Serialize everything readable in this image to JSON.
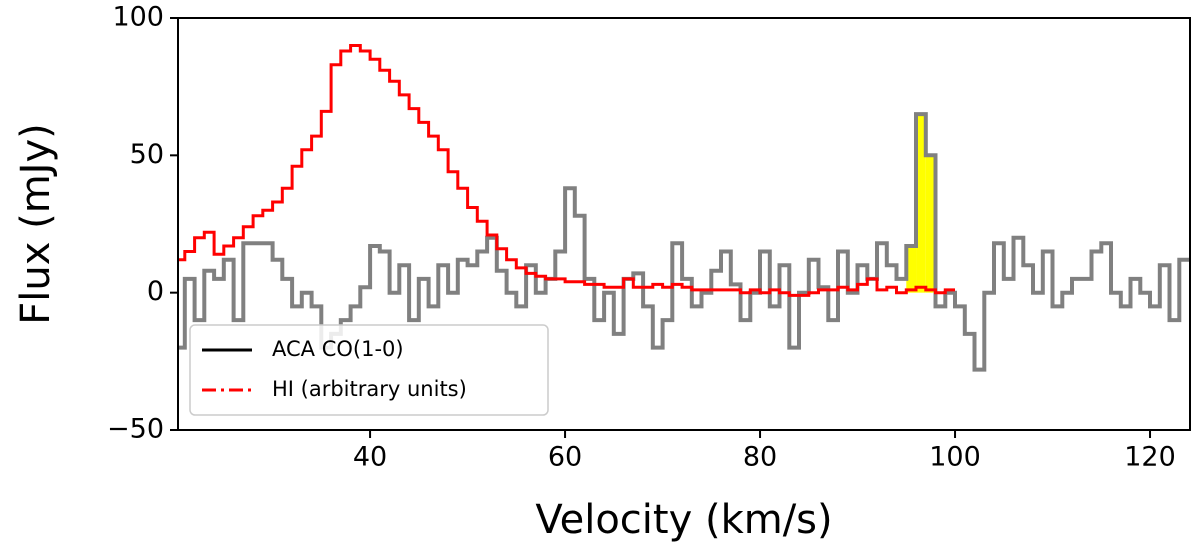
{
  "chart_data": {
    "type": "step",
    "xlabel": "Velocity (km/s)",
    "ylabel": "Flux (mJy)",
    "xlim": [
      20.3,
      124.1
    ],
    "ylim": [
      -50,
      100
    ],
    "xticks": [
      40,
      60,
      80,
      100,
      120
    ],
    "yticks": [
      {
        "value": -50,
        "label": "−50"
      },
      0,
      50,
      100
    ],
    "legend": "lower left",
    "highlight": {
      "xlim": [
        95,
        98
      ],
      "color": "#ffff00"
    },
    "series": [
      {
        "name": "ACA CO(1-0)",
        "color": "#808080",
        "legend_color": "#000000",
        "dash": "solid",
        "x": [
          20.5,
          21.5,
          22.5,
          23.5,
          24.5,
          25.5,
          26.5,
          27.5,
          28.5,
          29.5,
          30.5,
          31.5,
          32.5,
          33.5,
          34.5,
          35.5,
          36.5,
          37.5,
          38.5,
          39.5,
          40.5,
          41.5,
          42.5,
          43.5,
          44.5,
          45.5,
          46.5,
          47.5,
          48.5,
          49.5,
          50.5,
          51.5,
          52.5,
          53.5,
          54.5,
          55.5,
          56.5,
          57.5,
          58.5,
          59.5,
          60.5,
          61.5,
          62.5,
          63.5,
          64.5,
          65.5,
          66.5,
          67.5,
          68.5,
          69.5,
          70.5,
          71.5,
          72.5,
          73.5,
          74.5,
          75.5,
          76.5,
          77.5,
          78.5,
          79.5,
          80.5,
          81.5,
          82.5,
          83.5,
          84.5,
          85.5,
          86.5,
          87.5,
          88.5,
          89.5,
          90.5,
          91.5,
          92.5,
          93.5,
          94.5,
          95.5,
          96.5,
          97.5,
          98.5,
          99.5,
          100.5,
          101.5,
          102.5,
          103.5,
          104.5,
          105.5,
          106.5,
          107.5,
          108.5,
          109.5,
          110.5,
          111.5,
          112.5,
          113.5,
          114.5,
          115.5,
          116.5,
          117.5,
          118.5,
          119.5,
          120.5,
          121.5,
          122.5,
          123.5
        ],
        "values": [
          -20,
          5,
          -10,
          8,
          5,
          12,
          -10,
          18,
          18,
          18,
          12,
          5,
          -5,
          0,
          -5,
          -20,
          -15,
          -10,
          -5,
          2,
          17,
          15,
          0,
          10,
          -10,
          5,
          -5,
          10,
          0,
          12,
          10,
          15,
          20,
          8,
          0,
          -5,
          10,
          0,
          5,
          15,
          38,
          28,
          5,
          -10,
          0,
          -15,
          5,
          7,
          -5,
          -20,
          -10,
          18,
          5,
          -5,
          0,
          8,
          15,
          3,
          -10,
          0,
          15,
          -5,
          10,
          -20,
          0,
          12,
          2,
          -10,
          15,
          0,
          10,
          5,
          18,
          10,
          5,
          17,
          65,
          50,
          -5,
          0,
          -5,
          -15,
          -28,
          0,
          18,
          5,
          20,
          10,
          0,
          15,
          -5,
          0,
          5,
          5,
          15,
          18,
          0,
          -5,
          5,
          0,
          -5,
          10,
          -10,
          12
        ]
      },
      {
        "name": "HI (arbitrary units)",
        "color": "#ff0000",
        "legend_color": "#ff0000",
        "dash": "dashdot",
        "x": [
          20.5,
          21.5,
          22.5,
          23.5,
          24.5,
          25.5,
          26.5,
          27.5,
          28.5,
          29.5,
          30.5,
          31.5,
          32.5,
          33.5,
          34.5,
          35.5,
          36.5,
          37.5,
          38.5,
          39.5,
          40.5,
          41.5,
          42.5,
          43.5,
          44.5,
          45.5,
          46.5,
          47.5,
          48.5,
          49.5,
          50.5,
          51.5,
          52.5,
          53.5,
          54.5,
          55.5,
          56.5,
          57.5,
          58.5,
          59.5,
          60.5,
          61.5,
          62.5,
          63.5,
          64.5,
          65.5,
          66.5,
          67.5,
          68.5,
          69.5,
          70.5,
          71.5,
          72.5,
          73.5,
          74.5,
          75.5,
          76.5,
          77.5,
          78.5,
          79.5,
          80.5,
          81.5,
          82.5,
          83.5,
          84.5,
          85.5,
          86.5,
          87.5,
          88.5,
          89.5,
          90.5,
          91.5,
          92.5,
          93.5,
          94.5,
          95.5,
          96.5,
          97.5,
          98.5,
          99.5
        ],
        "values": [
          12,
          15,
          20,
          22,
          14,
          17,
          20,
          24,
          28,
          30,
          33,
          38,
          46,
          52,
          57,
          66,
          83,
          88,
          90,
          88,
          85,
          81,
          77,
          72,
          67,
          62,
          57,
          52,
          44,
          38,
          31,
          26,
          21,
          16,
          12,
          9,
          7,
          6,
          5,
          5,
          4,
          4,
          3,
          3,
          2,
          2,
          5,
          2,
          2,
          3,
          2,
          3,
          2,
          1,
          1,
          1,
          1,
          1,
          0,
          1,
          0,
          1,
          0,
          -1,
          -1,
          0,
          1,
          1,
          2,
          1,
          3,
          5,
          1,
          2,
          0,
          1,
          2,
          1,
          0,
          1
        ]
      }
    ]
  }
}
